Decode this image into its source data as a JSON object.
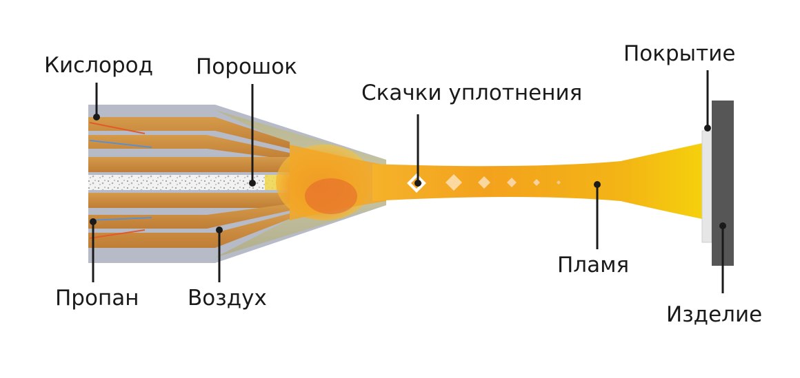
{
  "labels": {
    "oxygen": "Кислород",
    "powder": "Порошок",
    "shock_diamonds": "Скачки уплотнения",
    "coating": "Покрытие",
    "propane": "Пропан",
    "air": "Воздух",
    "flame": "Пламя",
    "workpiece": "Изделие"
  },
  "colors": {
    "nozzle_body": "#b3b7c3",
    "nozzle_cone": "#b8b596",
    "channel_copper": "#c98a3c",
    "flame_core": "#f0a020",
    "flame_hot": "#e8702a",
    "flame_tip": "#f4cc10",
    "workpiece": "#555555",
    "coating": "#e4e4e4",
    "leader_line": "#1a1a1a"
  }
}
